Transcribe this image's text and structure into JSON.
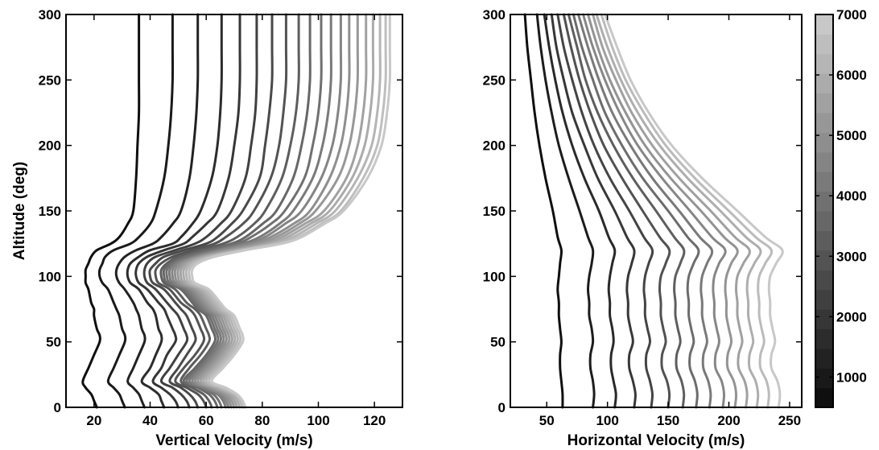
{
  "chart_data": [
    {
      "type": "line",
      "xlabel": "Vertical Velocity (m/s)",
      "ylabel": "Altitude (deg)",
      "xlim": [
        10,
        130
      ],
      "ylim": [
        0,
        300
      ],
      "xticks": [
        20,
        40,
        60,
        80,
        100,
        120
      ],
      "yticks": [
        0,
        50,
        100,
        150,
        200,
        250,
        300
      ],
      "xtick_labels": [
        "20",
        "40",
        "60",
        "80",
        "100",
        "120"
      ],
      "ytick_labels": [
        "0",
        "50",
        "100",
        "150",
        "200",
        "250",
        "300"
      ],
      "grid": false,
      "colors": "grayscale by colorbar value (dark = low, light = high)",
      "series_note": "20 curves, one per colorbar value from about 500 to 7000 in steps of ~340",
      "profile_altitudes": [
        0,
        5,
        10,
        15,
        20,
        30,
        40,
        50,
        55,
        60,
        70,
        75,
        80,
        90,
        95,
        100,
        105,
        110,
        115,
        120,
        125,
        130,
        140,
        150,
        175,
        200,
        225,
        250,
        275,
        300
      ],
      "series": [
        {
          "values": [
            21,
            20,
            19,
            17,
            16,
            18,
            20,
            22,
            22,
            21,
            20,
            20,
            19,
            18,
            17,
            17,
            17,
            18,
            19,
            21,
            26,
            29,
            32,
            34,
            35,
            35.5,
            36,
            36,
            36,
            36
          ]
        },
        {
          "values": [
            31,
            30,
            29,
            27,
            25,
            27,
            29,
            31,
            31,
            30,
            29,
            28,
            27,
            25,
            23,
            22,
            22,
            23,
            24,
            27,
            33,
            36,
            40,
            42,
            45,
            46.5,
            47.5,
            48,
            48,
            48
          ]
        },
        {
          "values": [
            38,
            37,
            36,
            34,
            32,
            34,
            36,
            38,
            38,
            37,
            36,
            35,
            34,
            31,
            29,
            28,
            28,
            29,
            31,
            35,
            41,
            44,
            48,
            51,
            54,
            55.5,
            56.5,
            57,
            57,
            57
          ]
        },
        {
          "values": [
            45,
            44,
            43,
            40,
            37,
            40,
            42,
            44,
            44,
            43,
            42,
            41,
            39,
            36,
            33,
            32,
            32,
            33,
            36,
            40,
            48,
            51,
            55,
            58,
            62,
            64,
            65,
            65.5,
            65.5,
            65.5
          ]
        },
        {
          "values": [
            50,
            49,
            47,
            44,
            41,
            44,
            46,
            49,
            49,
            48,
            46,
            45,
            43,
            39,
            36,
            35,
            35,
            36,
            39,
            45,
            52,
            55,
            60,
            64,
            68,
            70,
            71.5,
            72,
            72,
            72
          ]
        },
        {
          "values": [
            54,
            53,
            51,
            48,
            44,
            47,
            50,
            53,
            53,
            52,
            50,
            48,
            46,
            42,
            39,
            38,
            38,
            39,
            42,
            49,
            56,
            60,
            65,
            69,
            74,
            76,
            77.5,
            78,
            78,
            78
          ]
        },
        {
          "values": [
            57,
            56,
            54,
            51,
            47,
            50,
            53,
            56,
            56,
            55,
            53,
            51,
            49,
            45,
            41,
            40,
            40,
            42,
            45,
            52,
            60,
            64,
            69,
            73,
            79,
            81,
            82.5,
            83.5,
            83.5,
            83.5
          ]
        },
        {
          "values": [
            60,
            59,
            57,
            53,
            49,
            52,
            56,
            59,
            59,
            58,
            56,
            54,
            51,
            47,
            43,
            42,
            42,
            44,
            48,
            55,
            63,
            67,
            73,
            77,
            83,
            86,
            87.5,
            88.5,
            88.5,
            88.5
          ]
        },
        {
          "values": [
            62,
            61,
            59,
            55,
            51,
            54,
            58,
            61,
            61,
            60,
            58,
            56,
            53,
            49,
            45,
            44,
            44,
            46,
            50,
            58,
            66,
            71,
            77,
            81,
            87,
            90,
            92,
            93,
            93,
            93
          ]
        },
        {
          "values": [
            64,
            63,
            61,
            57,
            52,
            56,
            60,
            63,
            63,
            62,
            60,
            57,
            55,
            51,
            46,
            45,
            45,
            47,
            52,
            60,
            69,
            74,
            80,
            85,
            91,
            94,
            96,
            97,
            97,
            97
          ]
        },
        {
          "values": [
            65.5,
            64.5,
            62.5,
            58,
            53,
            57,
            61,
            64,
            64,
            63,
            61,
            58,
            56,
            52,
            47,
            46,
            46,
            48,
            53,
            62,
            71,
            76,
            83,
            88,
            95,
            98,
            100,
            101,
            101,
            101
          ]
        },
        {
          "values": [
            67,
            66,
            64,
            59,
            54,
            58,
            62,
            65,
            65,
            64,
            62,
            59,
            57,
            53,
            48,
            47,
            47,
            49,
            55,
            64,
            73,
            79,
            86,
            91,
            98,
            101.5,
            103.5,
            104.5,
            104.5,
            104.5
          ]
        },
        {
          "values": [
            68,
            67,
            65,
            60,
            55,
            59,
            63,
            66,
            66,
            65,
            63,
            60,
            58,
            54,
            49,
            48,
            48,
            50,
            56,
            65,
            75,
            81,
            88,
            94,
            101,
            105,
            107,
            108,
            108,
            108
          ]
        },
        {
          "values": [
            69,
            68,
            66,
            61,
            56,
            60,
            64,
            67,
            67,
            66,
            64,
            61,
            59,
            55,
            50,
            49,
            49,
            51,
            57,
            67,
            77,
            83,
            91,
            97,
            104,
            108,
            110,
            111,
            111,
            111
          ]
        },
        {
          "values": [
            70,
            69,
            67,
            62,
            57,
            61,
            65,
            68,
            68,
            67,
            65,
            62,
            60,
            56,
            51,
            50,
            50,
            52,
            58,
            68,
            79,
            85,
            93,
            99,
            107,
            111,
            113,
            114,
            114,
            114
          ]
        },
        {
          "values": [
            71,
            70,
            68,
            63,
            58,
            62,
            66,
            69,
            69,
            68,
            66,
            63,
            61,
            57,
            52,
            51,
            51,
            53,
            59,
            70,
            81,
            87,
            95,
            102,
            110,
            114,
            116,
            117,
            117,
            117
          ]
        },
        {
          "values": [
            72,
            71,
            69,
            64,
            59,
            63,
            67,
            70,
            70,
            69,
            67,
            64,
            62,
            58,
            53,
            52,
            52,
            54,
            60,
            71,
            83,
            89,
            97,
            104,
            112,
            116.5,
            118.5,
            119.5,
            119.5,
            119.5
          ]
        },
        {
          "values": [
            73,
            72,
            70,
            65,
            60,
            64,
            68,
            71,
            71,
            70,
            68,
            65,
            63,
            59,
            54,
            53,
            53,
            55,
            61,
            72,
            84,
            91,
            99,
            106,
            114,
            119,
            121,
            122,
            122,
            122
          ]
        },
        {
          "values": [
            73.5,
            72.5,
            70.5,
            66,
            61,
            65,
            69,
            72,
            72,
            71,
            69,
            66,
            64,
            60,
            55,
            54,
            54,
            56,
            62,
            73,
            86,
            93,
            101,
            108,
            116,
            121,
            123,
            124,
            124,
            124
          ]
        },
        {
          "values": [
            74,
            73,
            71,
            67,
            62,
            66,
            70,
            73,
            73,
            72,
            70,
            67,
            65,
            61,
            56,
            55,
            55,
            57,
            63,
            74,
            87,
            94,
            102,
            109,
            117.5,
            122.5,
            124.5,
            125.5,
            125.5,
            125.5
          ]
        }
      ]
    },
    {
      "type": "line",
      "xlabel": "Horizontal Velocity (m/s)",
      "ylabel": "",
      "xlim": [
        20,
        260
      ],
      "ylim": [
        0,
        300
      ],
      "xticks": [
        50,
        100,
        150,
        200,
        250
      ],
      "yticks": [
        0,
        50,
        100,
        150,
        200,
        250,
        300
      ],
      "xtick_labels": [
        "50",
        "100",
        "150",
        "200",
        "250"
      ],
      "ytick_labels": [
        "0",
        "50",
        "100",
        "150",
        "200",
        "250",
        "300"
      ],
      "grid": false,
      "profile_altitudes": [
        0,
        10,
        20,
        30,
        40,
        50,
        60,
        70,
        80,
        90,
        100,
        110,
        120,
        130,
        150,
        175,
        200,
        225,
        250,
        275,
        300
      ],
      "series": [
        {
          "values": [
            63,
            63,
            62,
            61,
            61,
            62,
            61,
            60,
            60,
            59,
            60,
            61,
            62,
            59,
            55,
            49,
            44,
            40,
            37,
            34,
            32
          ]
        },
        {
          "values": [
            88,
            89,
            88,
            86,
            86,
            88,
            87,
            85,
            85,
            84,
            85,
            87,
            88,
            84,
            77,
            68,
            60,
            54,
            49,
            45,
            42
          ]
        },
        {
          "values": [
            106,
            107,
            105,
            103,
            103,
            105,
            104,
            102,
            102,
            101,
            102,
            104,
            106,
            101,
            93,
            81,
            71,
            63,
            57,
            52,
            48
          ]
        },
        {
          "values": [
            122,
            123,
            121,
            118,
            118,
            121,
            119,
            117,
            117,
            116,
            117,
            120,
            122,
            116,
            106,
            92,
            81,
            71,
            64,
            58,
            54
          ]
        },
        {
          "values": [
            136,
            137,
            135,
            132,
            132,
            135,
            133,
            131,
            131,
            130,
            131,
            134,
            137,
            130,
            118,
            102,
            89,
            79,
            71,
            64,
            59
          ]
        },
        {
          "values": [
            150,
            151,
            149,
            145,
            145,
            148,
            146,
            144,
            144,
            143,
            144,
            148,
            151,
            143,
            129,
            112,
            97,
            86,
            77,
            70,
            64
          ]
        },
        {
          "values": [
            162,
            163,
            161,
            157,
            157,
            160,
            158,
            156,
            156,
            155,
            156,
            160,
            163,
            155,
            140,
            121,
            105,
            92,
            82,
            75,
            68
          ]
        },
        {
          "values": [
            173,
            174,
            172,
            168,
            168,
            171,
            169,
            167,
            167,
            166,
            167,
            171,
            175,
            166,
            150,
            129,
            112,
            98,
            88,
            79,
            72
          ]
        },
        {
          "values": [
            184,
            185,
            183,
            179,
            179,
            182,
            180,
            178,
            178,
            177,
            178,
            182,
            186,
            176,
            159,
            137,
            119,
            104,
            93,
            84,
            76
          ]
        },
        {
          "values": [
            195,
            196,
            194,
            189,
            189,
            192,
            190,
            188,
            188,
            187,
            188,
            192,
            197,
            186,
            168,
            145,
            125,
            110,
            98,
            88,
            80
          ]
        },
        {
          "values": [
            205,
            206,
            204,
            199,
            199,
            202,
            200,
            198,
            198,
            197,
            198,
            202,
            207,
            196,
            177,
            152,
            131,
            115,
            102,
            92,
            84
          ]
        },
        {
          "values": [
            214,
            215,
            213,
            208,
            208,
            211,
            209,
            207,
            207,
            206,
            207,
            212,
            217,
            205,
            185,
            159,
            137,
            120,
            107,
            96,
            88
          ]
        },
        {
          "values": [
            223,
            224,
            222,
            217,
            217,
            220,
            218,
            216,
            216,
            215,
            216,
            221,
            226,
            214,
            193,
            166,
            143,
            125,
            111,
            100,
            91
          ]
        },
        {
          "values": [
            232,
            233,
            231,
            226,
            226,
            229,
            227,
            225,
            225,
            224,
            225,
            230,
            235,
            222,
            200,
            172,
            148,
            130,
            115,
            104,
            95
          ]
        },
        {
          "values": [
            241,
            242,
            240,
            235,
            235,
            238,
            236,
            234,
            234,
            233,
            234,
            239,
            244,
            230,
            207,
            178,
            153,
            134,
            119,
            108,
            98
          ]
        }
      ]
    }
  ],
  "colorbar": {
    "min": 500,
    "max": 7000,
    "ticks": [
      1000,
      2000,
      3000,
      4000,
      5000,
      6000,
      7000
    ],
    "tick_labels": [
      "1000",
      "2000",
      "3000",
      "4000",
      "5000",
      "6000",
      "7000"
    ],
    "levels": 20
  }
}
